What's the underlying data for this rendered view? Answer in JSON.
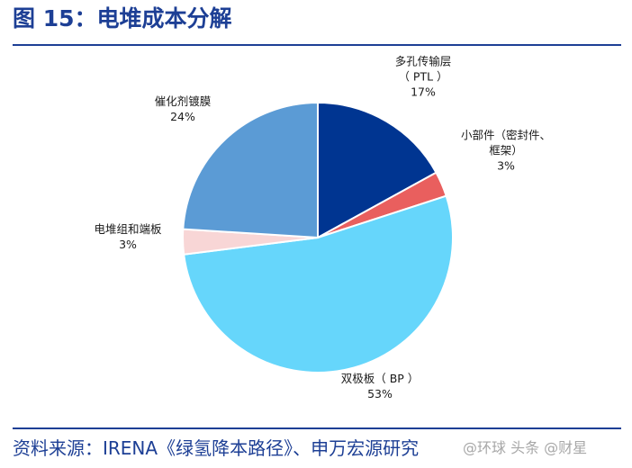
{
  "figure": {
    "title": "图 15：电堆成本分解",
    "source": "资料来源：IRENA《绿氢降本路径》、申万宏源研究",
    "watermark": "@环球 头条 @财星"
  },
  "chart_data": {
    "type": "pie",
    "start_angle_deg": 0,
    "direction": "clockwise",
    "slices": [
      {
        "name_lines": [
          "多孔传输层",
          "（ PTL ）"
        ],
        "value": 17,
        "label": "17%",
        "color": "#003591"
      },
      {
        "name_lines": [
          "小部件（密封件、",
          "框架）"
        ],
        "value": 3,
        "label": "3%",
        "color": "#e95f5e"
      },
      {
        "name_lines": [
          "双极板（ BP ）"
        ],
        "value": 53,
        "label": "53%",
        "color": "#66d6fb"
      },
      {
        "name_lines": [
          "电堆组和端板"
        ],
        "value": 3,
        "label": "3%",
        "color": "#f8d6d6"
      },
      {
        "name_lines": [
          "催化剂镀膜"
        ],
        "value": 24,
        "label": "24%",
        "color": "#5b9bd5"
      }
    ]
  }
}
